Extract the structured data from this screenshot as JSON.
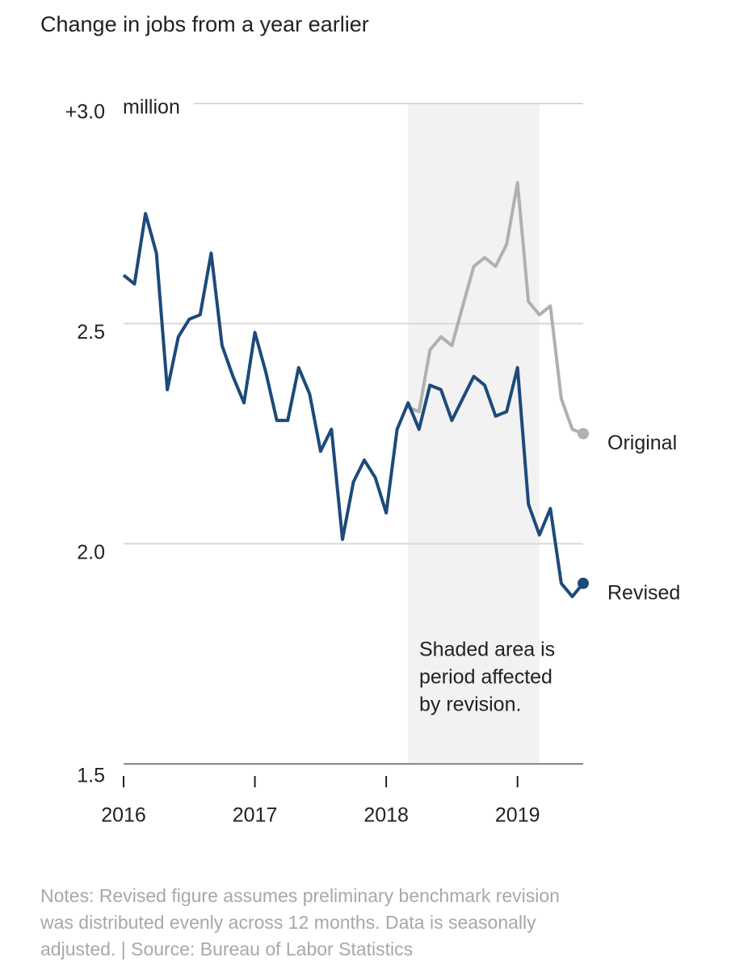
{
  "chart_data": {
    "type": "line",
    "title": "Change in jobs from a year earlier",
    "y_unit": "million",
    "x": [
      2016,
      2016.083,
      2016.167,
      2016.25,
      2016.333,
      2016.417,
      2016.5,
      2016.583,
      2016.667,
      2016.75,
      2016.833,
      2016.917,
      2017,
      2017.083,
      2017.167,
      2017.25,
      2017.333,
      2017.417,
      2017.5,
      2017.583,
      2017.667,
      2017.75,
      2017.833,
      2017.917,
      2018,
      2018.083,
      2018.167,
      2018.25,
      2018.333,
      2018.417,
      2018.5,
      2018.583,
      2018.667,
      2018.75,
      2018.833,
      2018.917,
      2019,
      2019.083,
      2019.167,
      2019.25,
      2019.333,
      2019.417,
      2019.5
    ],
    "series": [
      {
        "name": "Original",
        "color": "#b0b0b0",
        "values": [
          null,
          null,
          null,
          null,
          null,
          null,
          null,
          null,
          null,
          null,
          null,
          null,
          null,
          null,
          null,
          null,
          null,
          null,
          null,
          null,
          null,
          null,
          null,
          null,
          null,
          null,
          2.31,
          2.3,
          2.44,
          2.47,
          2.45,
          2.54,
          2.63,
          2.65,
          2.63,
          2.68,
          2.82,
          2.55,
          2.52,
          2.54,
          2.33,
          2.26,
          2.25
        ]
      },
      {
        "name": "Revised",
        "color": "#1d4a7a",
        "values": [
          2.61,
          2.59,
          2.75,
          2.66,
          2.35,
          2.47,
          2.51,
          2.52,
          2.66,
          2.45,
          2.38,
          2.32,
          2.48,
          2.39,
          2.28,
          2.28,
          2.4,
          2.34,
          2.21,
          2.26,
          2.01,
          2.14,
          2.19,
          2.15,
          2.07,
          2.26,
          2.32,
          2.26,
          2.36,
          2.35,
          2.28,
          2.33,
          2.38,
          2.36,
          2.29,
          2.3,
          2.4,
          2.09,
          2.02,
          2.08,
          1.91,
          1.88,
          1.91
        ]
      }
    ],
    "shade": [
      2018.167,
      2019.167
    ],
    "annotation": [
      "Shaded area is",
      "period affected",
      "by revision."
    ],
    "xlim": [
      2016,
      2019.5
    ],
    "xticks": [
      2016,
      2017,
      2018,
      2019
    ],
    "ylim": [
      1.5,
      3.0
    ],
    "yticks": [
      1.5,
      {
        "value": 2,
        "label": "2.0"
      },
      2.5,
      {
        "value": 3,
        "label": "+3.0"
      }
    ],
    "grid": true,
    "notes": [
      "Notes: Revised figure assumes preliminary benchmark revision",
      "was distributed evenly across 12 months. Data is seasonally",
      "adjusted. | Source: Bureau of Labor Statistics"
    ]
  }
}
